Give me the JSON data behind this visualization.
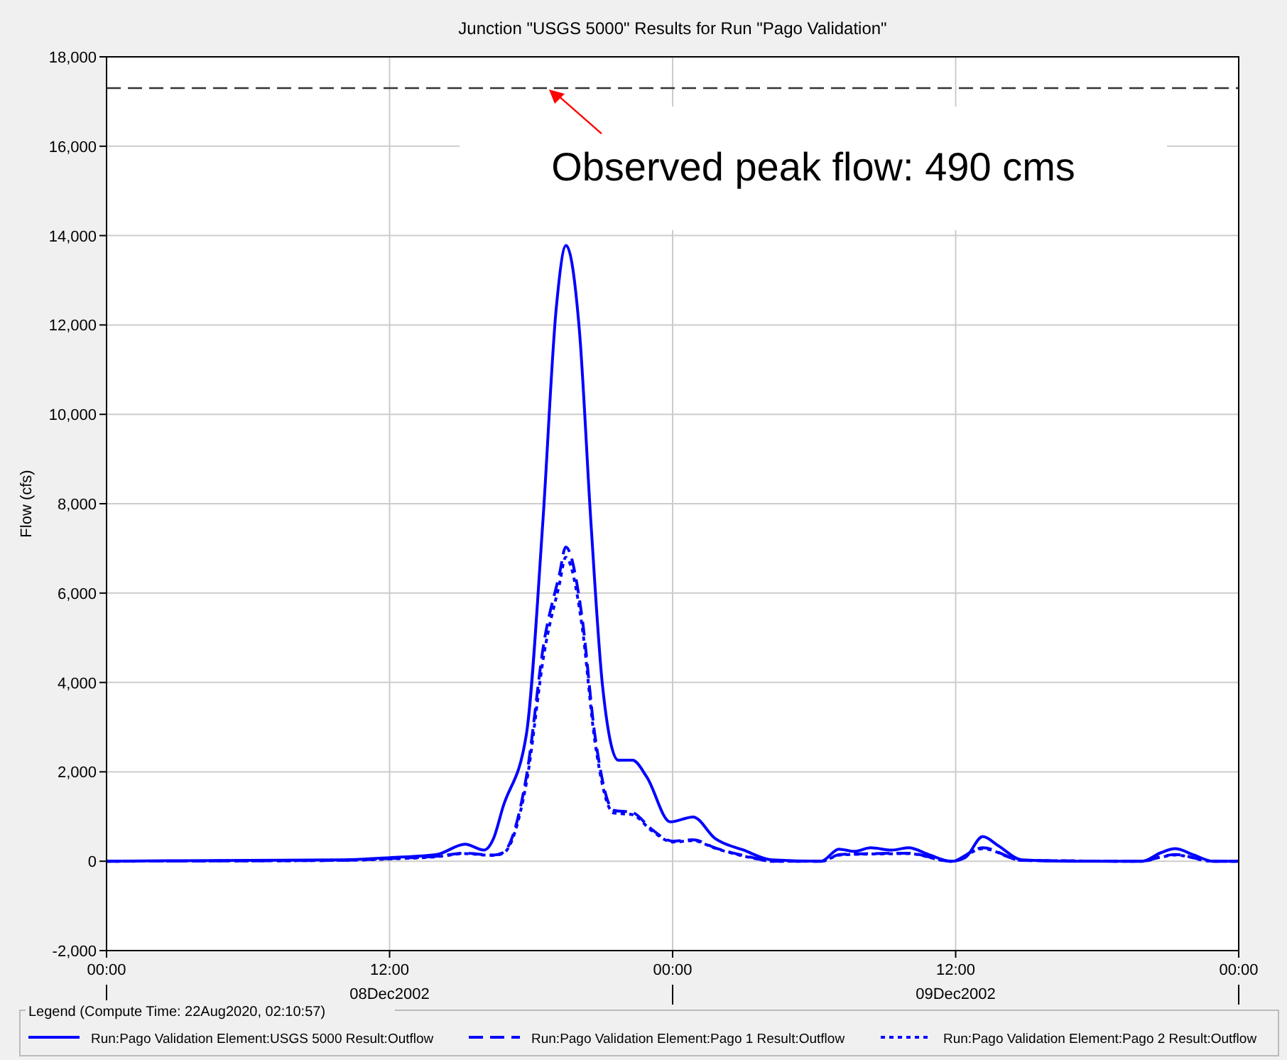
{
  "chart_data": {
    "type": "line",
    "title": "Junction \"USGS 5000\" Results for Run \"Pago Validation\"",
    "ylabel": "Flow (cfs)",
    "legend_title": "Legend (Compute Time: 22Aug2020, 02:10:57)",
    "xlim": [
      "2002-12-08T00:00",
      "2002-12-10T00:00"
    ],
    "xticks": [
      {
        "value": "2002-12-08T00:00",
        "label": "00:00"
      },
      {
        "value": "2002-12-08T12:00",
        "label": "12:00\n08Dec2002"
      },
      {
        "value": "2002-12-09T00:00",
        "label": "00:00"
      },
      {
        "value": "2002-12-09T12:00",
        "label": "12:00\n09Dec2002"
      },
      {
        "value": "2002-12-10T00:00",
        "label": "00:00"
      }
    ],
    "ylim": [
      -2000,
      18000
    ],
    "yticks": [
      {
        "value": -2000,
        "label": "-2,000"
      },
      0,
      {
        "value": 2000,
        "label": "2,000"
      },
      {
        "value": 4000,
        "label": "4,000"
      },
      {
        "value": 6000,
        "label": "6,000"
      },
      {
        "value": 8000,
        "label": "8,000"
      },
      {
        "value": 10000,
        "label": "10,000"
      },
      {
        "value": 12000,
        "label": "12,000"
      },
      {
        "value": 14000,
        "label": "14,000"
      },
      {
        "value": 16000,
        "label": "16,000"
      },
      {
        "value": 18000,
        "label": "18,000"
      }
    ],
    "grid": true,
    "legend": "bottom",
    "marker": "none",
    "ref_lines": [
      {
        "axis": "y",
        "value": 17300,
        "color": "#333333",
        "line_style": "dashed"
      }
    ],
    "annotations": [
      {
        "text": "Observed peak flow: 490 cms",
        "x": "2002-12-08T18:42",
        "y": 17300
      }
    ],
    "series": [
      {
        "name": "Run:Pago Validation Element:USGS 5000 Result:Outflow",
        "color": "#0000ff",
        "line_style": "solid",
        "x": [
          "2002-12-08T00:00",
          "2002-12-08T06:00",
          "2002-12-08T10:00",
          "2002-12-08T12:00",
          "2002-12-08T14:00",
          "2002-12-08T15:12",
          "2002-12-08T16:00",
          "2002-12-08T16:24",
          "2002-12-08T16:48",
          "2002-12-08T17:48",
          "2002-12-08T18:30",
          "2002-12-08T19:04",
          "2002-12-08T19:29",
          "2002-12-08T20:03",
          "2002-12-08T20:32",
          "2002-12-08T21:02",
          "2002-12-08T21:42",
          "2002-12-08T22:18",
          "2002-12-08T22:54",
          "2002-12-08T23:54",
          "2002-12-09T00:52",
          "2002-12-09T01:48",
          "2002-12-09T03:00",
          "2002-12-09T04:12",
          "2002-12-09T06:18",
          "2002-12-09T07:03",
          "2002-12-09T07:42",
          "2002-12-09T08:24",
          "2002-12-09T09:18",
          "2002-12-09T10:00",
          "2002-12-09T10:54",
          "2002-12-09T11:48",
          "2002-12-09T12:24",
          "2002-12-09T13:09",
          "2002-12-09T13:48",
          "2002-12-09T14:48",
          "2002-12-09T16:48",
          "2002-12-09T19:54",
          "2002-12-09T20:42",
          "2002-12-09T21:18",
          "2002-12-09T22:06",
          "2002-12-09T22:54",
          "2002-12-10T00:00"
        ],
        "values": [
          0,
          20,
          30,
          80,
          150,
          380,
          250,
          500,
          1200,
          2840,
          7610,
          12380,
          13780,
          11860,
          7610,
          3900,
          2260,
          2260,
          1890,
          880,
          990,
          510,
          250,
          30,
          0,
          270,
          220,
          300,
          250,
          300,
          140,
          0,
          80,
          550,
          350,
          30,
          0,
          0,
          190,
          280,
          140,
          0,
          0
        ]
      },
      {
        "name": "Run:Pago Validation Element:Pago 1 Result:Outflow",
        "color": "#0000ff",
        "line_style": "dashed",
        "x": [
          "2002-12-08T00:00",
          "2002-12-08T10:00",
          "2002-12-08T12:00",
          "2002-12-08T14:00",
          "2002-12-08T15:12",
          "2002-12-08T16:00",
          "2002-12-08T16:24",
          "2002-12-08T16:48",
          "2002-12-08T17:48",
          "2002-12-08T18:34",
          "2002-12-08T19:12",
          "2002-12-08T19:28",
          "2002-12-08T20:09",
          "2002-12-08T20:42",
          "2002-12-08T21:30",
          "2002-12-08T22:18",
          "2002-12-08T23:06",
          "2002-12-09T00:00",
          "2002-12-09T00:52",
          "2002-12-09T01:48",
          "2002-12-09T03:24",
          "2002-12-09T04:12",
          "2002-12-09T06:18",
          "2002-12-09T07:06",
          "2002-12-09T08:24",
          "2002-12-09T10:00",
          "2002-12-09T11:48",
          "2002-12-09T13:09",
          "2002-12-09T14:48",
          "2002-12-09T19:54",
          "2002-12-09T20:42",
          "2002-12-09T21:18",
          "2002-12-09T22:54",
          "2002-12-10T00:00"
        ],
        "values": [
          0,
          20,
          60,
          110,
          180,
          150,
          140,
          190,
          1890,
          4960,
          6420,
          7030,
          5500,
          2840,
          1140,
          1090,
          720,
          450,
          480,
          300,
          80,
          0,
          0,
          150,
          170,
          180,
          0,
          300,
          20,
          0,
          100,
          150,
          0,
          0
        ]
      },
      {
        "name": "Run:Pago Validation Element:Pago 2 Result:Outflow",
        "color": "#0000ff",
        "line_style": "dotted",
        "x": [
          "2002-12-08T00:00",
          "2002-12-08T10:00",
          "2002-12-08T12:00",
          "2002-12-08T14:00",
          "2002-12-08T15:12",
          "2002-12-08T16:00",
          "2002-12-08T16:24",
          "2002-12-08T16:48",
          "2002-12-08T17:48",
          "2002-12-08T18:34",
          "2002-12-08T19:12",
          "2002-12-08T19:28",
          "2002-12-08T20:09",
          "2002-12-08T20:42",
          "2002-12-08T21:30",
          "2002-12-08T22:18",
          "2002-12-08T23:06",
          "2002-12-09T00:00",
          "2002-12-09T00:52",
          "2002-12-09T01:48",
          "2002-12-09T03:24",
          "2002-12-09T04:12",
          "2002-12-09T06:18",
          "2002-12-09T07:06",
          "2002-12-09T08:24",
          "2002-12-09T10:00",
          "2002-12-09T11:48",
          "2002-12-09T13:09",
          "2002-12-09T14:48",
          "2002-12-09T19:54",
          "2002-12-09T20:42",
          "2002-12-09T21:18",
          "2002-12-09T22:54",
          "2002-12-10T00:00"
        ],
        "values": [
          0,
          20,
          50,
          100,
          170,
          140,
          130,
          170,
          1750,
          4700,
          6200,
          6800,
          5300,
          2700,
          1080,
          1040,
          690,
          430,
          460,
          290,
          70,
          0,
          0,
          140,
          160,
          170,
          0,
          280,
          20,
          0,
          90,
          140,
          0,
          0
        ]
      }
    ]
  }
}
